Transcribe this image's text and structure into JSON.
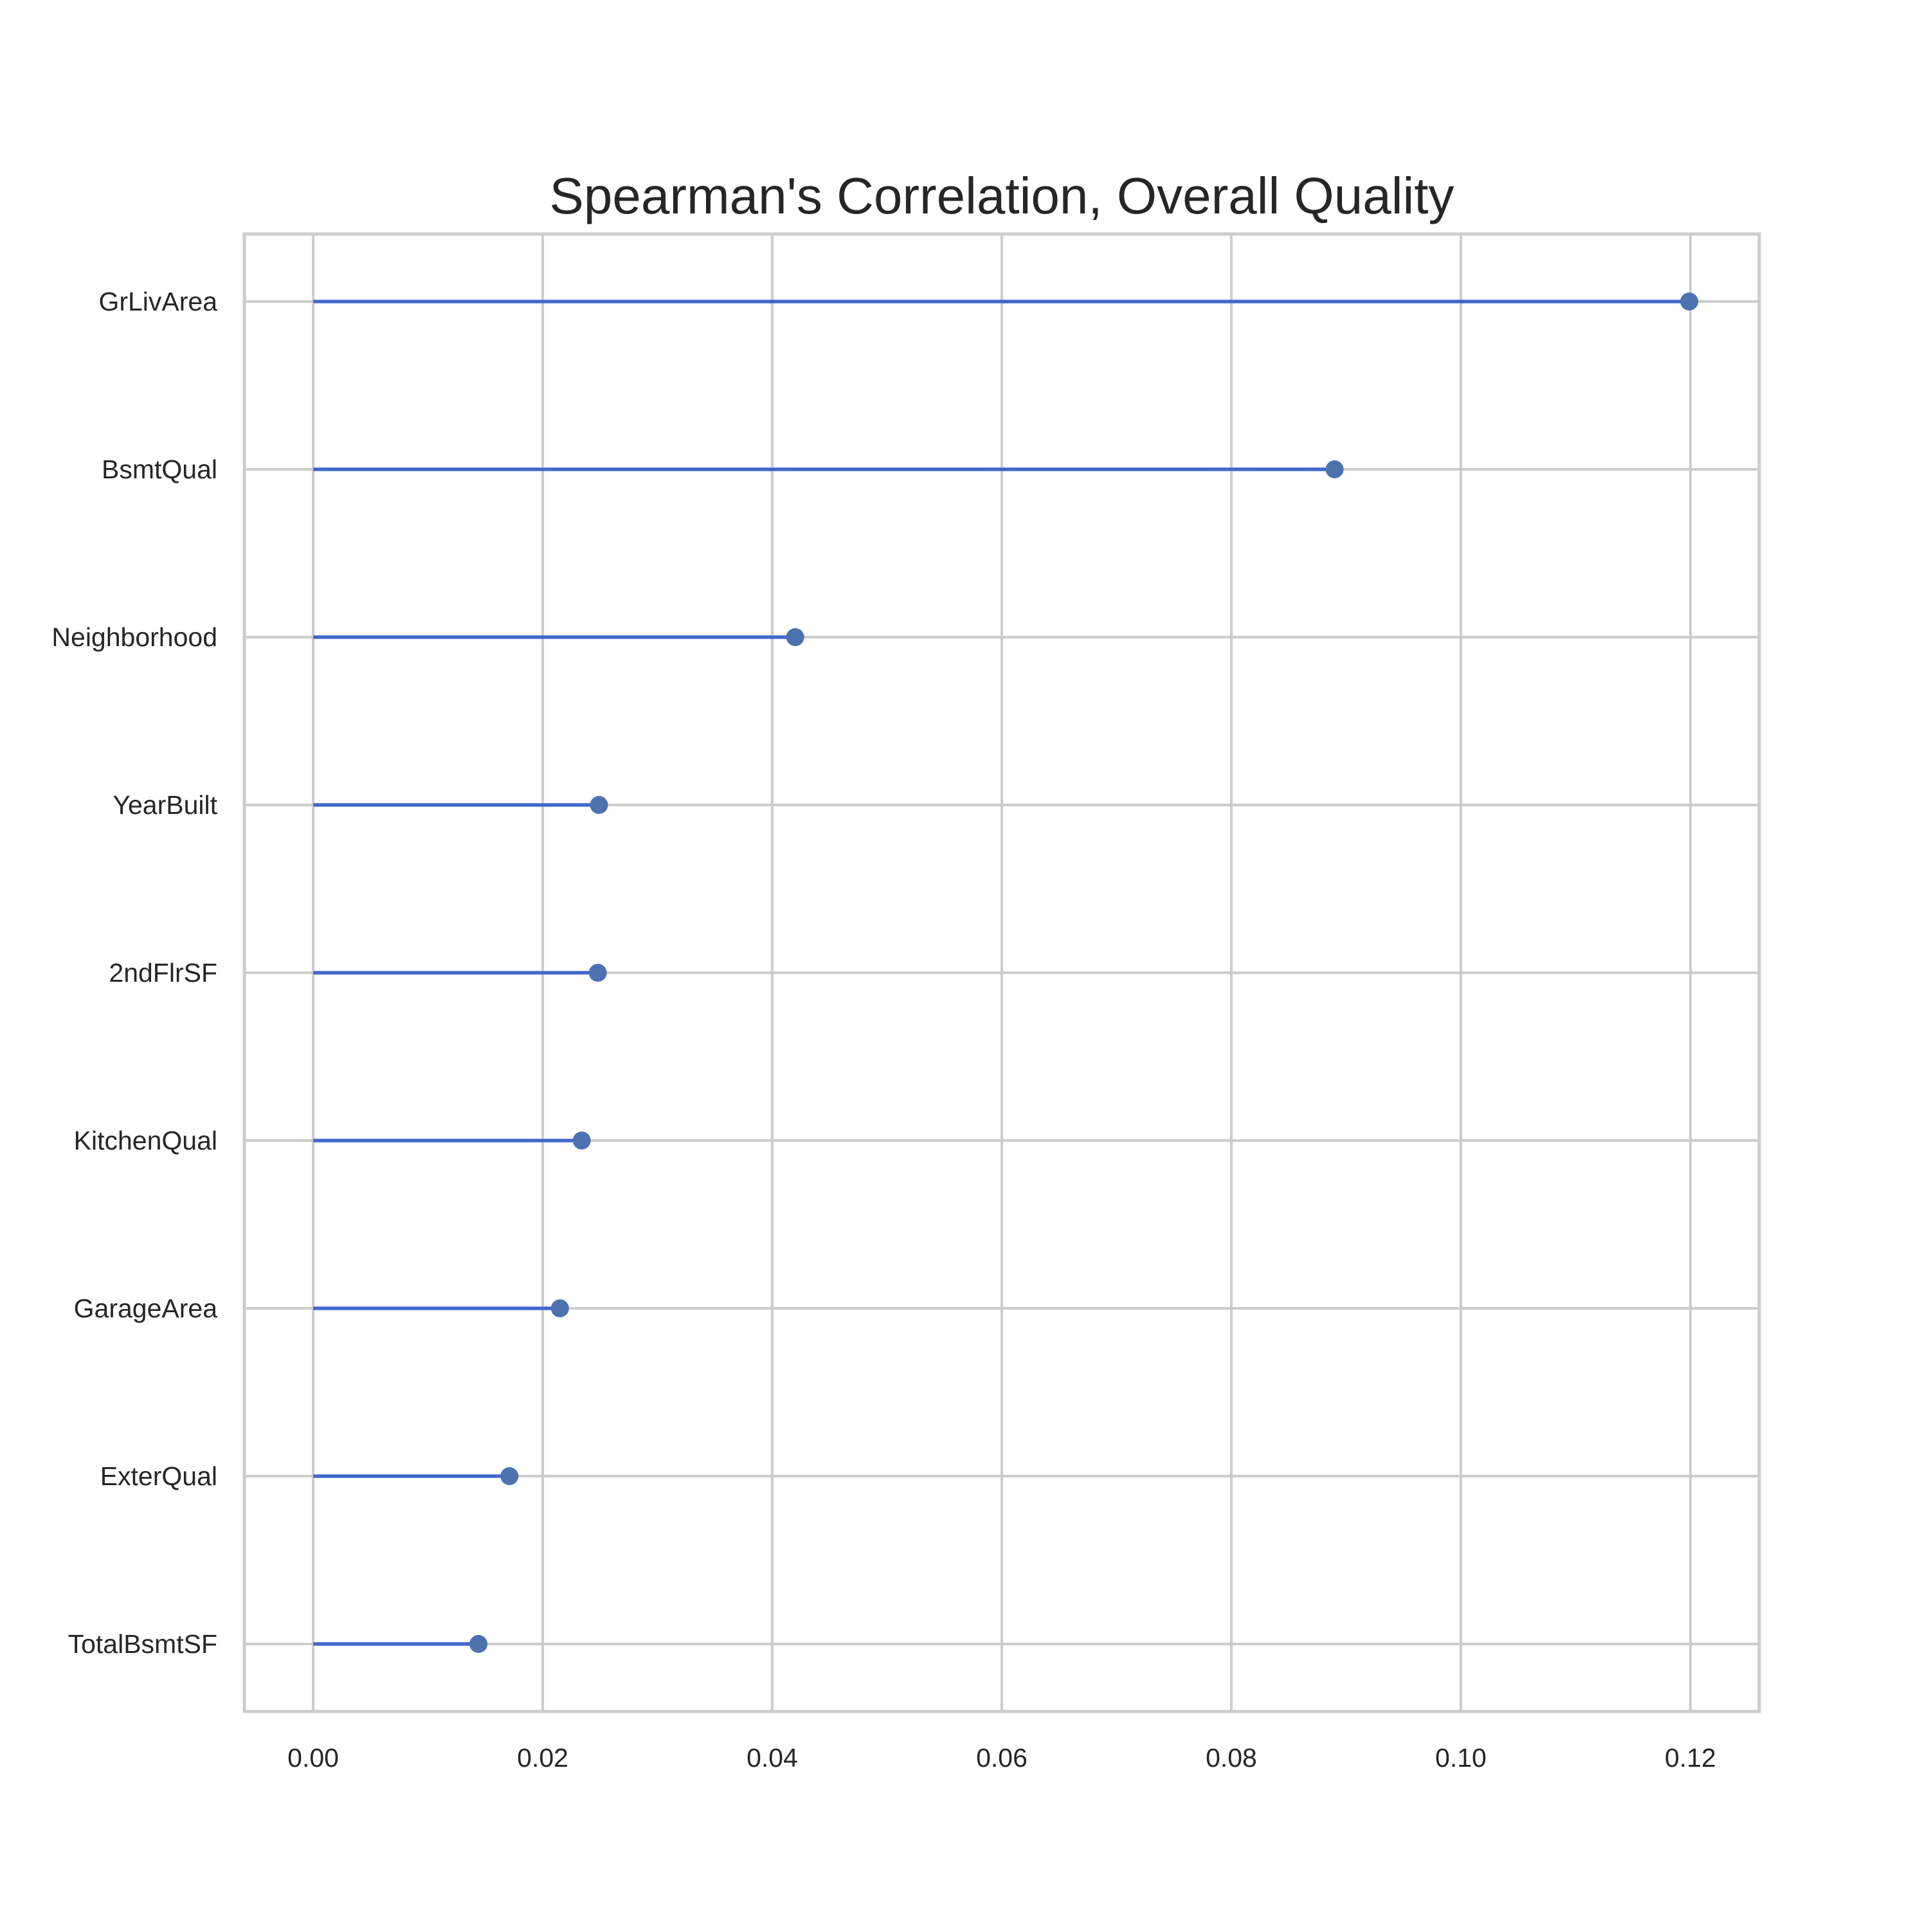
{
  "chart_data": {
    "type": "lollipop",
    "orientation": "horizontal",
    "title": "Spearman's Correlation, Overall Quality",
    "xlabel": "",
    "ylabel": "",
    "categories": [
      "GrLivArea",
      "BsmtQual",
      "Neighborhood",
      "YearBuilt",
      "2ndFlrSF",
      "KitchenQual",
      "GarageArea",
      "ExterQual",
      "TotalBsmtSF"
    ],
    "values": [
      0.1199,
      0.089,
      0.042,
      0.0249,
      0.0248,
      0.0234,
      0.0215,
      0.0171,
      0.0144
    ],
    "xlim": [
      -0.006,
      0.126
    ],
    "xticks": [
      0.0,
      0.02,
      0.04,
      0.06,
      0.08,
      0.1,
      0.12
    ],
    "xtick_labels": [
      "0.00",
      "0.02",
      "0.04",
      "0.06",
      "0.08",
      "0.10",
      "0.12"
    ],
    "grid": true,
    "line_color": "#4169cc",
    "marker_color": "#4c72b0",
    "grid_color": "#cccccc"
  }
}
